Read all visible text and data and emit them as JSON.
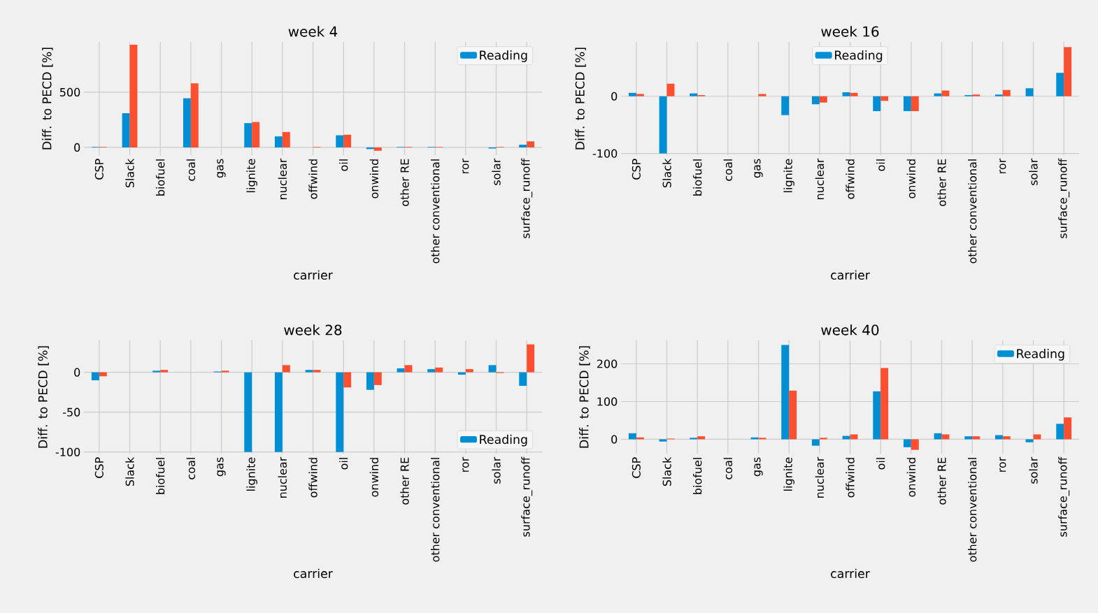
{
  "chart_data": [
    {
      "type": "bar",
      "title": "week 4",
      "xlabel": "carrier",
      "ylabel": "Diff. to PECD [%]",
      "categories": [
        "CSP",
        "Slack",
        "biofuel",
        "coal",
        "gas",
        "lignite",
        "nuclear",
        "offwind",
        "oil",
        "onwind",
        "other RE",
        "other conventional",
        "ror",
        "solar",
        "surface_runoff"
      ],
      "series": [
        {
          "name": "Reading",
          "color": "#008fd5",
          "values": [
            5,
            310,
            null,
            445,
            null,
            220,
            100,
            0,
            110,
            -15,
            5,
            5,
            null,
            -10,
            25
          ]
        },
        {
          "color": "#fc4f30",
          "values": [
            5,
            930,
            null,
            580,
            null,
            230,
            140,
            5,
            115,
            -30,
            5,
            5,
            null,
            5,
            55
          ]
        }
      ],
      "ylim": [
        -70,
        955
      ],
      "yticks": [
        0,
        500
      ],
      "grid": true,
      "legend": "top right"
    },
    {
      "type": "bar",
      "title": "week 16",
      "xlabel": "carrier",
      "ylabel": "Diff. to PECD [%]",
      "categories": [
        "CSP",
        "Slack",
        "biofuel",
        "coal",
        "gas",
        "lignite",
        "nuclear",
        "offwind",
        "oil",
        "onwind",
        "other RE",
        "other conventional",
        "ror",
        "solar",
        "surface_runoff"
      ],
      "series": [
        {
          "name": "Reading",
          "color": "#008fd5",
          "values": [
            6,
            -100,
            5,
            null,
            null,
            -33,
            -14,
            7,
            -26,
            -26,
            5,
            2,
            3,
            14,
            41
          ]
        },
        {
          "color": "#fc4f30",
          "values": [
            4,
            22,
            2,
            null,
            4,
            null,
            -11,
            6,
            -8,
            -26,
            10,
            3,
            11,
            null,
            86
          ]
        }
      ],
      "ylim": [
        -103,
        95
      ],
      "yticks": [
        -100,
        0
      ],
      "grid": true,
      "legend": "top"
    },
    {
      "type": "bar",
      "title": "week 28",
      "xlabel": "carrier",
      "ylabel": "Diff. to PECD [%]",
      "categories": [
        "CSP",
        "Slack",
        "biofuel",
        "coal",
        "gas",
        "lignite",
        "nuclear",
        "offwind",
        "oil",
        "onwind",
        "other RE",
        "other conventional",
        "ror",
        "solar",
        "surface_runoff"
      ],
      "series": [
        {
          "name": "Reading",
          "color": "#008fd5",
          "values": [
            -10,
            null,
            2,
            null,
            1,
            -100,
            -100,
            3,
            -100,
            -22,
            5,
            4,
            -3,
            9,
            -17
          ]
        },
        {
          "color": "#fc4f30",
          "values": [
            -5,
            null,
            3,
            null,
            2,
            null,
            9,
            3,
            -19,
            -16,
            9,
            6,
            4,
            -1,
            35
          ]
        }
      ],
      "ylim": [
        -102,
        40
      ],
      "yticks": [
        -100,
        -50,
        0
      ],
      "grid": true,
      "legend": "bottom right"
    },
    {
      "type": "bar",
      "title": "week 40",
      "xlabel": "carrier",
      "ylabel": "Diff. to PECD [%]",
      "categories": [
        "CSP",
        "Slack",
        "biofuel",
        "coal",
        "gas",
        "lignite",
        "nuclear",
        "offwind",
        "oil",
        "onwind",
        "other RE",
        "other conventional",
        "ror",
        "solar",
        "surface_runoff"
      ],
      "series": [
        {
          "name": "Reading",
          "color": "#008fd5",
          "values": [
            16,
            -6,
            4,
            null,
            5,
            250,
            -17,
            9,
            127,
            -21,
            16,
            8,
            11,
            -8,
            41
          ]
        },
        {
          "color": "#fc4f30",
          "values": [
            5,
            2,
            8,
            null,
            4,
            129,
            4,
            13,
            189,
            -28,
            13,
            8,
            8,
            13,
            58
          ]
        }
      ],
      "ylim": [
        -38,
        262
      ],
      "yticks": [
        0,
        100,
        200
      ],
      "grid": true,
      "legend": "top right"
    }
  ]
}
